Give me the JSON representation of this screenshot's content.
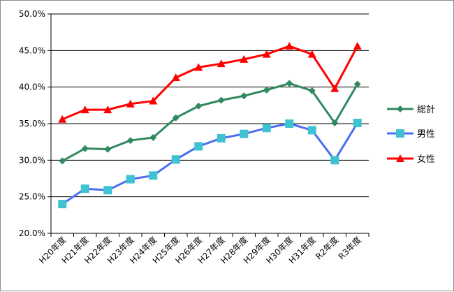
{
  "chart_data": {
    "type": "line",
    "categories": [
      "H20年度",
      "H21年度",
      "H22年度",
      "H23年度",
      "H24年度",
      "H25年度",
      "H26年度",
      "H27年度",
      "H28年度",
      "H29年度",
      "H30年度",
      "H31年度",
      "R2年度",
      "R3年度"
    ],
    "ylim": [
      20.0,
      50.0
    ],
    "yticks": [
      "20.0%",
      "25.0%",
      "30.0%",
      "35.0%",
      "40.0%",
      "45.0%",
      "50.0%"
    ],
    "grid": "horizontal",
    "legend_position": "right",
    "series": [
      {
        "name": "総計",
        "color": "#31895f",
        "marker": "diamond",
        "values": [
          29.9,
          31.6,
          31.5,
          32.7,
          33.1,
          35.8,
          37.4,
          38.2,
          38.8,
          39.6,
          40.5,
          39.5,
          35.1,
          40.4
        ]
      },
      {
        "name": "男性",
        "color": "#4a6ff0",
        "marker_color": "#3fc3d2",
        "marker": "square",
        "values": [
          24.0,
          26.1,
          25.9,
          27.4,
          27.9,
          30.1,
          31.9,
          33.0,
          33.6,
          34.4,
          35.0,
          34.1,
          30.0,
          35.1
        ]
      },
      {
        "name": "女性",
        "color": "#ff0000",
        "marker": "triangle",
        "values": [
          35.6,
          36.9,
          36.9,
          37.7,
          38.1,
          41.3,
          42.7,
          43.2,
          43.8,
          44.5,
          45.6,
          44.5,
          39.8,
          45.6
        ]
      }
    ]
  }
}
